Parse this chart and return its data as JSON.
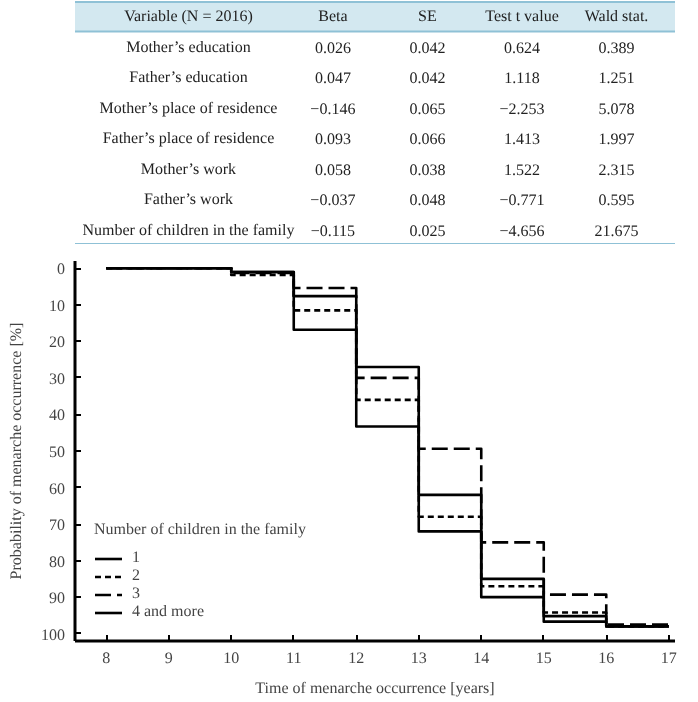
{
  "chart_data": [
    {
      "type": "other",
      "categories": [
        "Variable (N = 2016)",
        "Beta",
        "SE",
        "Test t value",
        "Wald stat."
      ],
      "y_categories": [
        "Mother’s education",
        "Father’s education",
        "Mother’s place of residence",
        "Father’s place of residence",
        "Mother’s work",
        "Father’s work",
        "Number of children in the family"
      ],
      "cell_labels": [
        [
          "0.026",
          "0.042",
          "0.624",
          "0.389"
        ],
        [
          "0.047",
          "0.042",
          "1.118",
          "1.251"
        ],
        [
          "−0.146",
          "0.065",
          "−2.253",
          "5.078"
        ],
        [
          "0.093",
          "0.066",
          "1.413",
          "1.997"
        ],
        [
          "0.058",
          "0.038",
          "1.522",
          "2.315"
        ],
        [
          "−0.037",
          "0.048",
          "−0.771",
          "0.595"
        ],
        [
          "−0.115",
          "0.025",
          "−4.656",
          "21.675"
        ]
      ]
    },
    {
      "type": "step",
      "xlabel": "Time of menarche occurrence [years]",
      "ylabel": "Probability of menarche occurrence [%]",
      "legend_title": "Number of children in the family",
      "legend": "bottom left",
      "x": [
        8,
        9,
        10,
        11,
        12,
        13,
        14,
        15,
        16,
        17
      ],
      "xlim": [
        7.5,
        17.1
      ],
      "xticks": [
        8,
        9,
        10,
        11,
        12,
        13,
        14,
        15,
        16,
        17
      ],
      "ylim": [
        102,
        -2
      ],
      "yticks": [
        0,
        10,
        20,
        30,
        40,
        50,
        60,
        70,
        80,
        90,
        100
      ],
      "grid": false,
      "series": [
        {
          "name": "1",
          "color": "#000000",
          "line_style": "solid",
          "values": [
            0,
            0,
            1,
            7.6,
            27,
            62,
            85,
            95.2,
            98,
            98
          ]
        },
        {
          "name": "2",
          "color": "#000000",
          "line_style": "dotted",
          "values": [
            0,
            0,
            1.8,
            11.5,
            36,
            68,
            87,
            94.2,
            98,
            98
          ]
        },
        {
          "name": "3",
          "color": "#000000",
          "line_style": "dashed",
          "values": [
            0,
            0,
            1.3,
            5.4,
            30,
            49.4,
            75,
            89.3,
            97.5,
            97.5
          ]
        },
        {
          "name": "4 and more",
          "color": "#000000",
          "line_style": "solid",
          "values": [
            0,
            0,
            1,
            16.8,
            43.3,
            72,
            90,
            96.7,
            98,
            98
          ]
        }
      ]
    }
  ]
}
